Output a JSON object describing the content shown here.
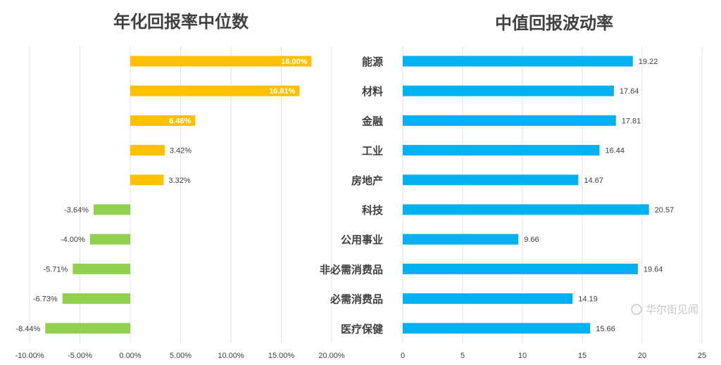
{
  "watermark": "华尔街见闻",
  "chart_data": [
    {
      "type": "bar",
      "orientation": "horizontal",
      "title": "年化回报率中位数",
      "xlim": [
        -10,
        20
      ],
      "xticks": [
        "-10.00%",
        "-5.00%",
        "0.00%",
        "5.00%",
        "10.00%",
        "15.00%",
        "20.00%"
      ],
      "grid": true,
      "values": [
        18.0,
        16.81,
        6.46,
        3.42,
        3.32,
        -3.64,
        -4.0,
        -5.71,
        -6.73,
        -8.44
      ],
      "labels": [
        "18.00%",
        "16.81%",
        "6.46%",
        "3.42%",
        "3.32%",
        "-3.64%",
        "-4.00%",
        "-5.71%",
        "-6.73%",
        "-8.44%"
      ],
      "colors": {
        "positive": "#FFC000",
        "negative": "#92D050"
      }
    },
    {
      "type": "bar",
      "orientation": "horizontal",
      "title": "中值回报波动率",
      "xlim": [
        0,
        25
      ],
      "xticks": [
        "0",
        "5",
        "10",
        "15",
        "20",
        "25"
      ],
      "grid": true,
      "categories": [
        "能源",
        "材料",
        "金融",
        "工业",
        "房地产",
        "科技",
        "公用事业",
        "非必需消费品",
        "必需消费品",
        "医疗保健"
      ],
      "values": [
        19.22,
        17.64,
        17.81,
        16.44,
        14.67,
        20.57,
        9.66,
        19.64,
        14.19,
        15.66
      ],
      "labels": [
        "19.22",
        "17.64",
        "17.81",
        "16.44",
        "14.67",
        "20.57",
        "9.66",
        "19.64",
        "14.19",
        "15.66"
      ],
      "color": "#00B0F0"
    }
  ]
}
